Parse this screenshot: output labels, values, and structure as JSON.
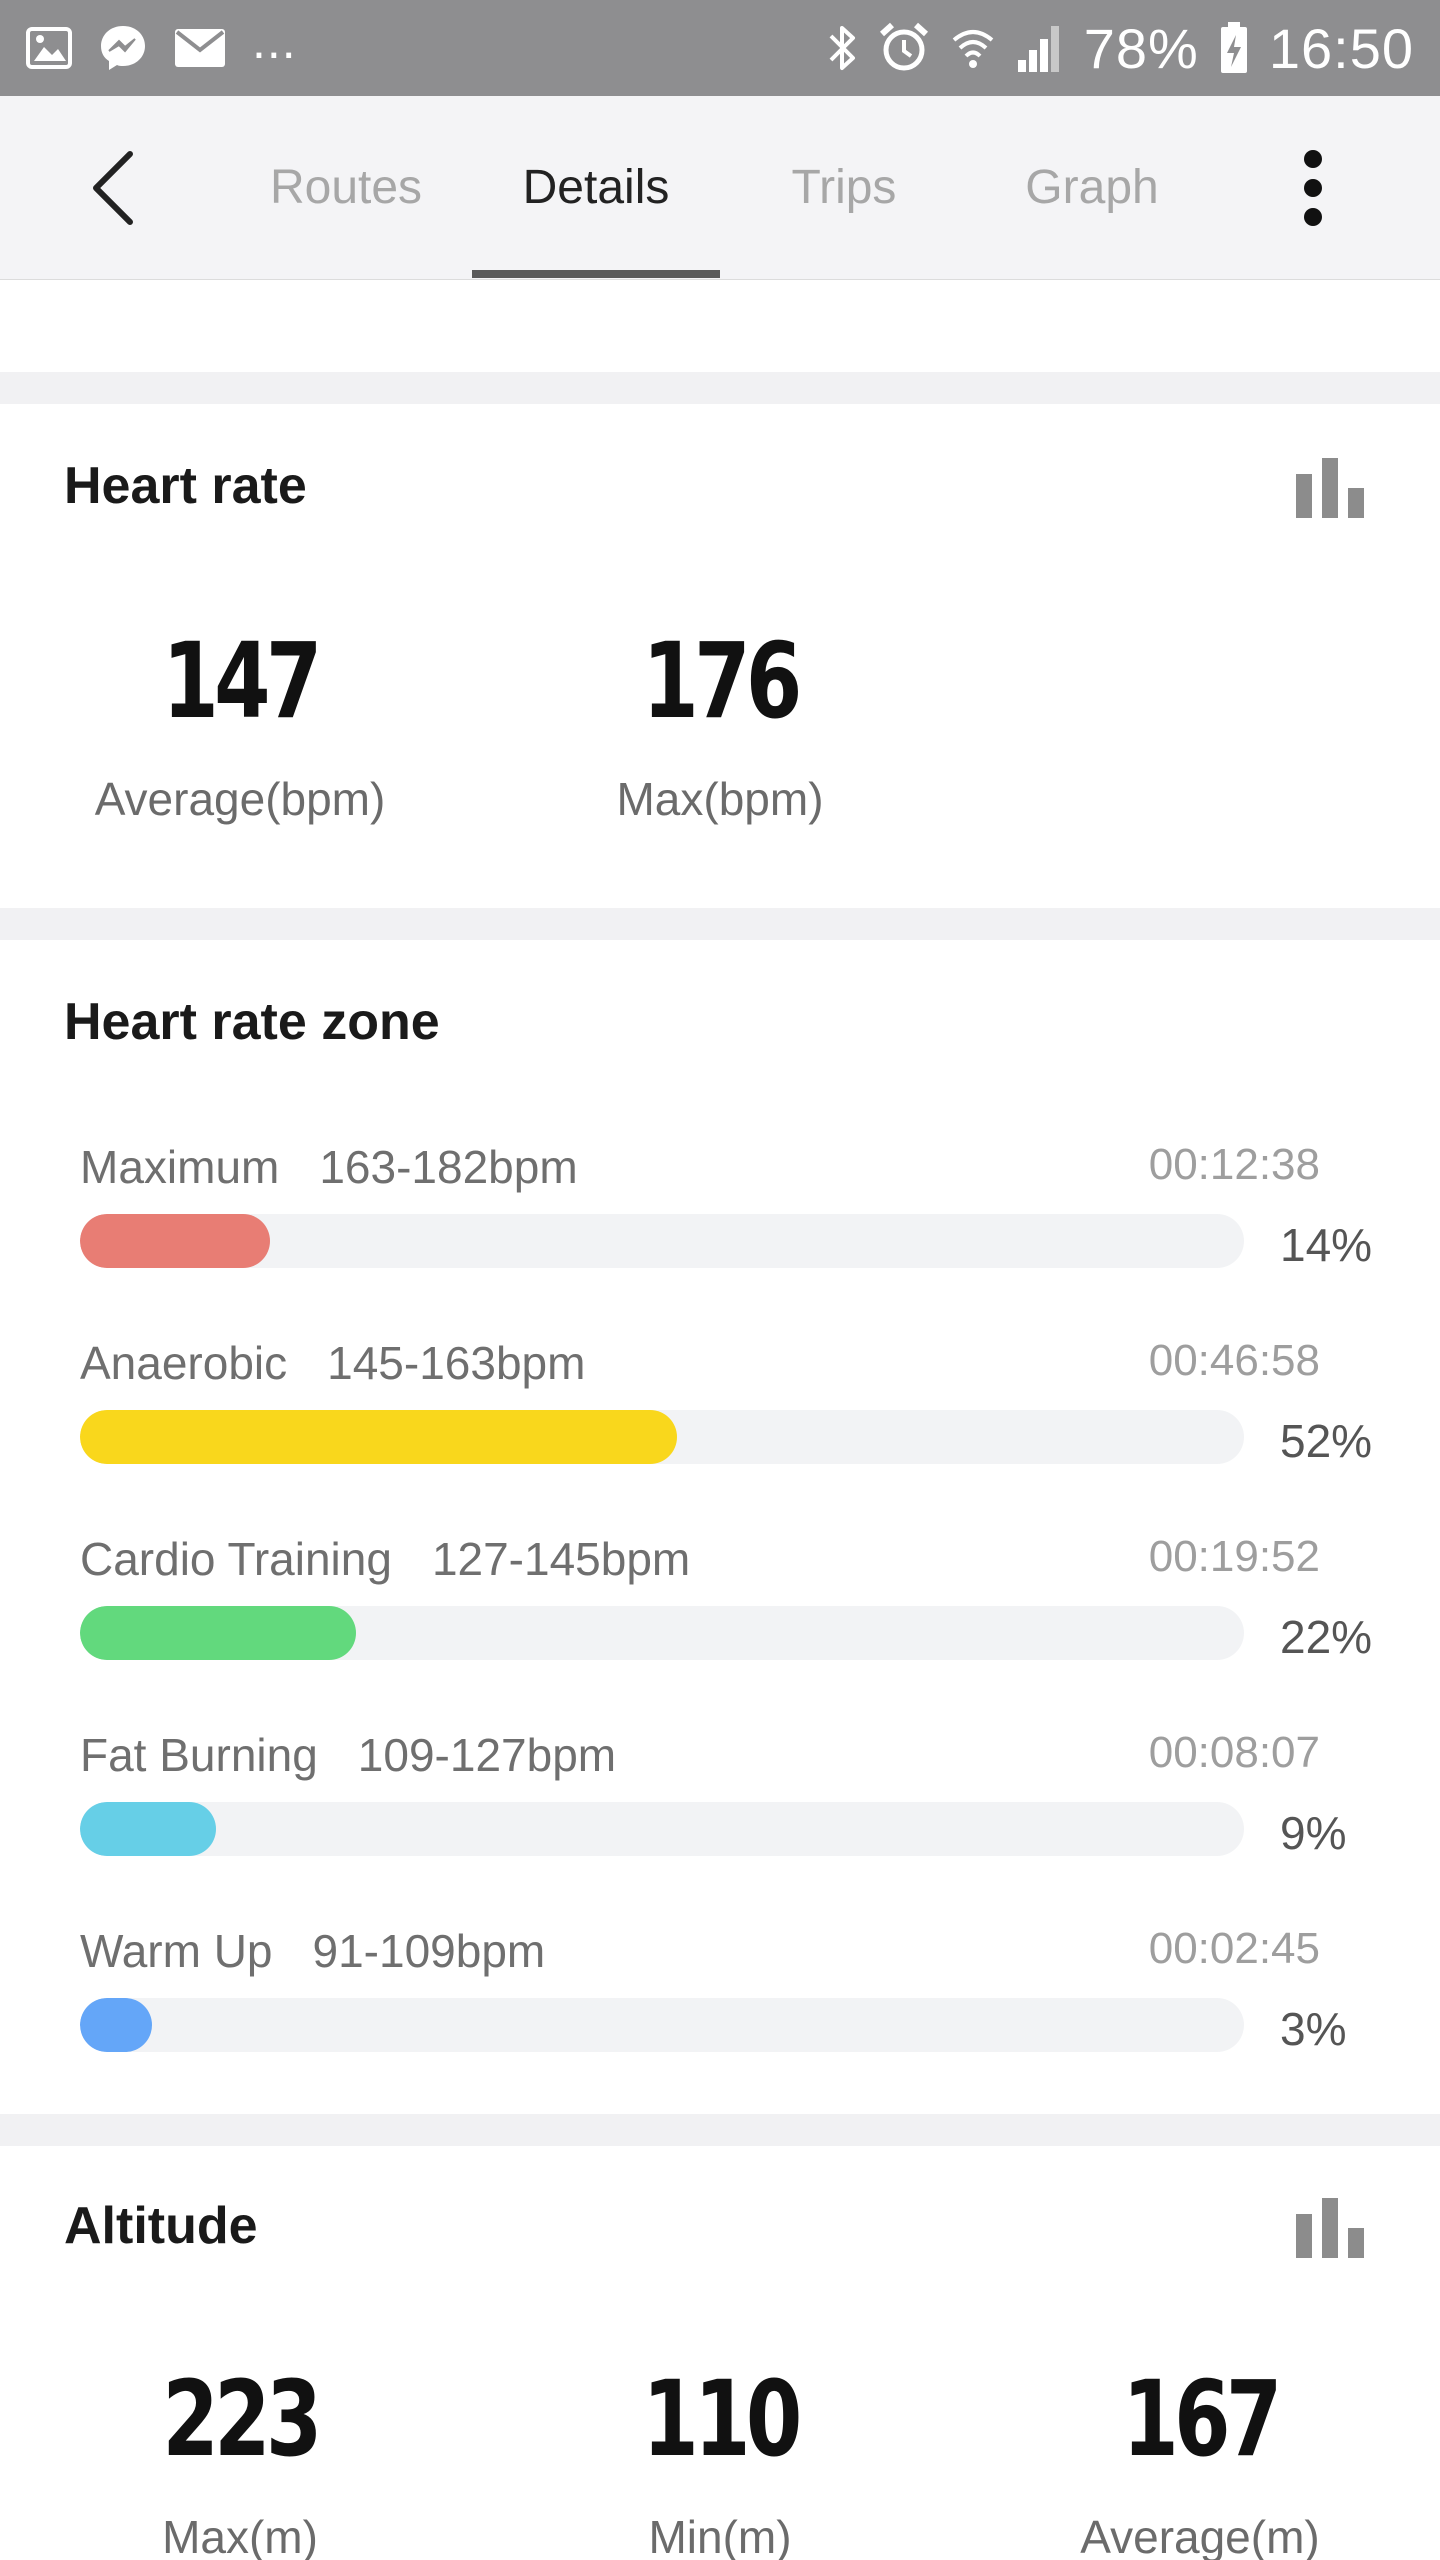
{
  "status_bar": {
    "battery": "78%",
    "time": "16:50",
    "more": "...",
    "left_icons": [
      "gallery-icon",
      "messenger-icon",
      "mail-icon"
    ],
    "right_icons": [
      "bluetooth-icon",
      "alarm-icon",
      "wifi-icon",
      "signal-icon",
      "battery-charging-icon"
    ]
  },
  "app_bar": {
    "tabs": [
      {
        "label": "Routes"
      },
      {
        "label": "Details"
      },
      {
        "label": "Trips"
      },
      {
        "label": "Graph"
      }
    ],
    "active_tab": "Details"
  },
  "heart_rate": {
    "title": "Heart rate",
    "average": "147",
    "average_label": "Average(bpm)",
    "max": "176",
    "max_label": "Max(bpm)"
  },
  "heart_rate_zone": {
    "title": "Heart rate zone",
    "zones": [
      {
        "name": "Maximum",
        "range": "163-182bpm",
        "time": "00:12:38",
        "percent": "14%",
        "fraction": 0.14,
        "color": "#e87d74"
      },
      {
        "name": "Anaerobic",
        "range": "145-163bpm",
        "time": "00:46:58",
        "percent": "52%",
        "fraction": 0.52,
        "color": "#f9d71c"
      },
      {
        "name": "Cardio Training",
        "range": "127-145bpm",
        "time": "00:19:52",
        "percent": "22%",
        "fraction": 0.22,
        "color": "#62d97d"
      },
      {
        "name": "Fat Burning",
        "range": "109-127bpm",
        "time": "00:08:07",
        "percent": "9%",
        "fraction": 0.09,
        "color": "#66cfe7"
      },
      {
        "name": "Warm Up",
        "range": "91-109bpm",
        "time": "00:02:45",
        "percent": "3%",
        "fraction": 0.03,
        "color": "#64a6f8"
      }
    ]
  },
  "altitude": {
    "title": "Altitude",
    "max": "223",
    "max_label": "Max(m)",
    "min": "110",
    "min_label": "Min(m)",
    "average": "167",
    "average_label": "Average(m)"
  }
}
